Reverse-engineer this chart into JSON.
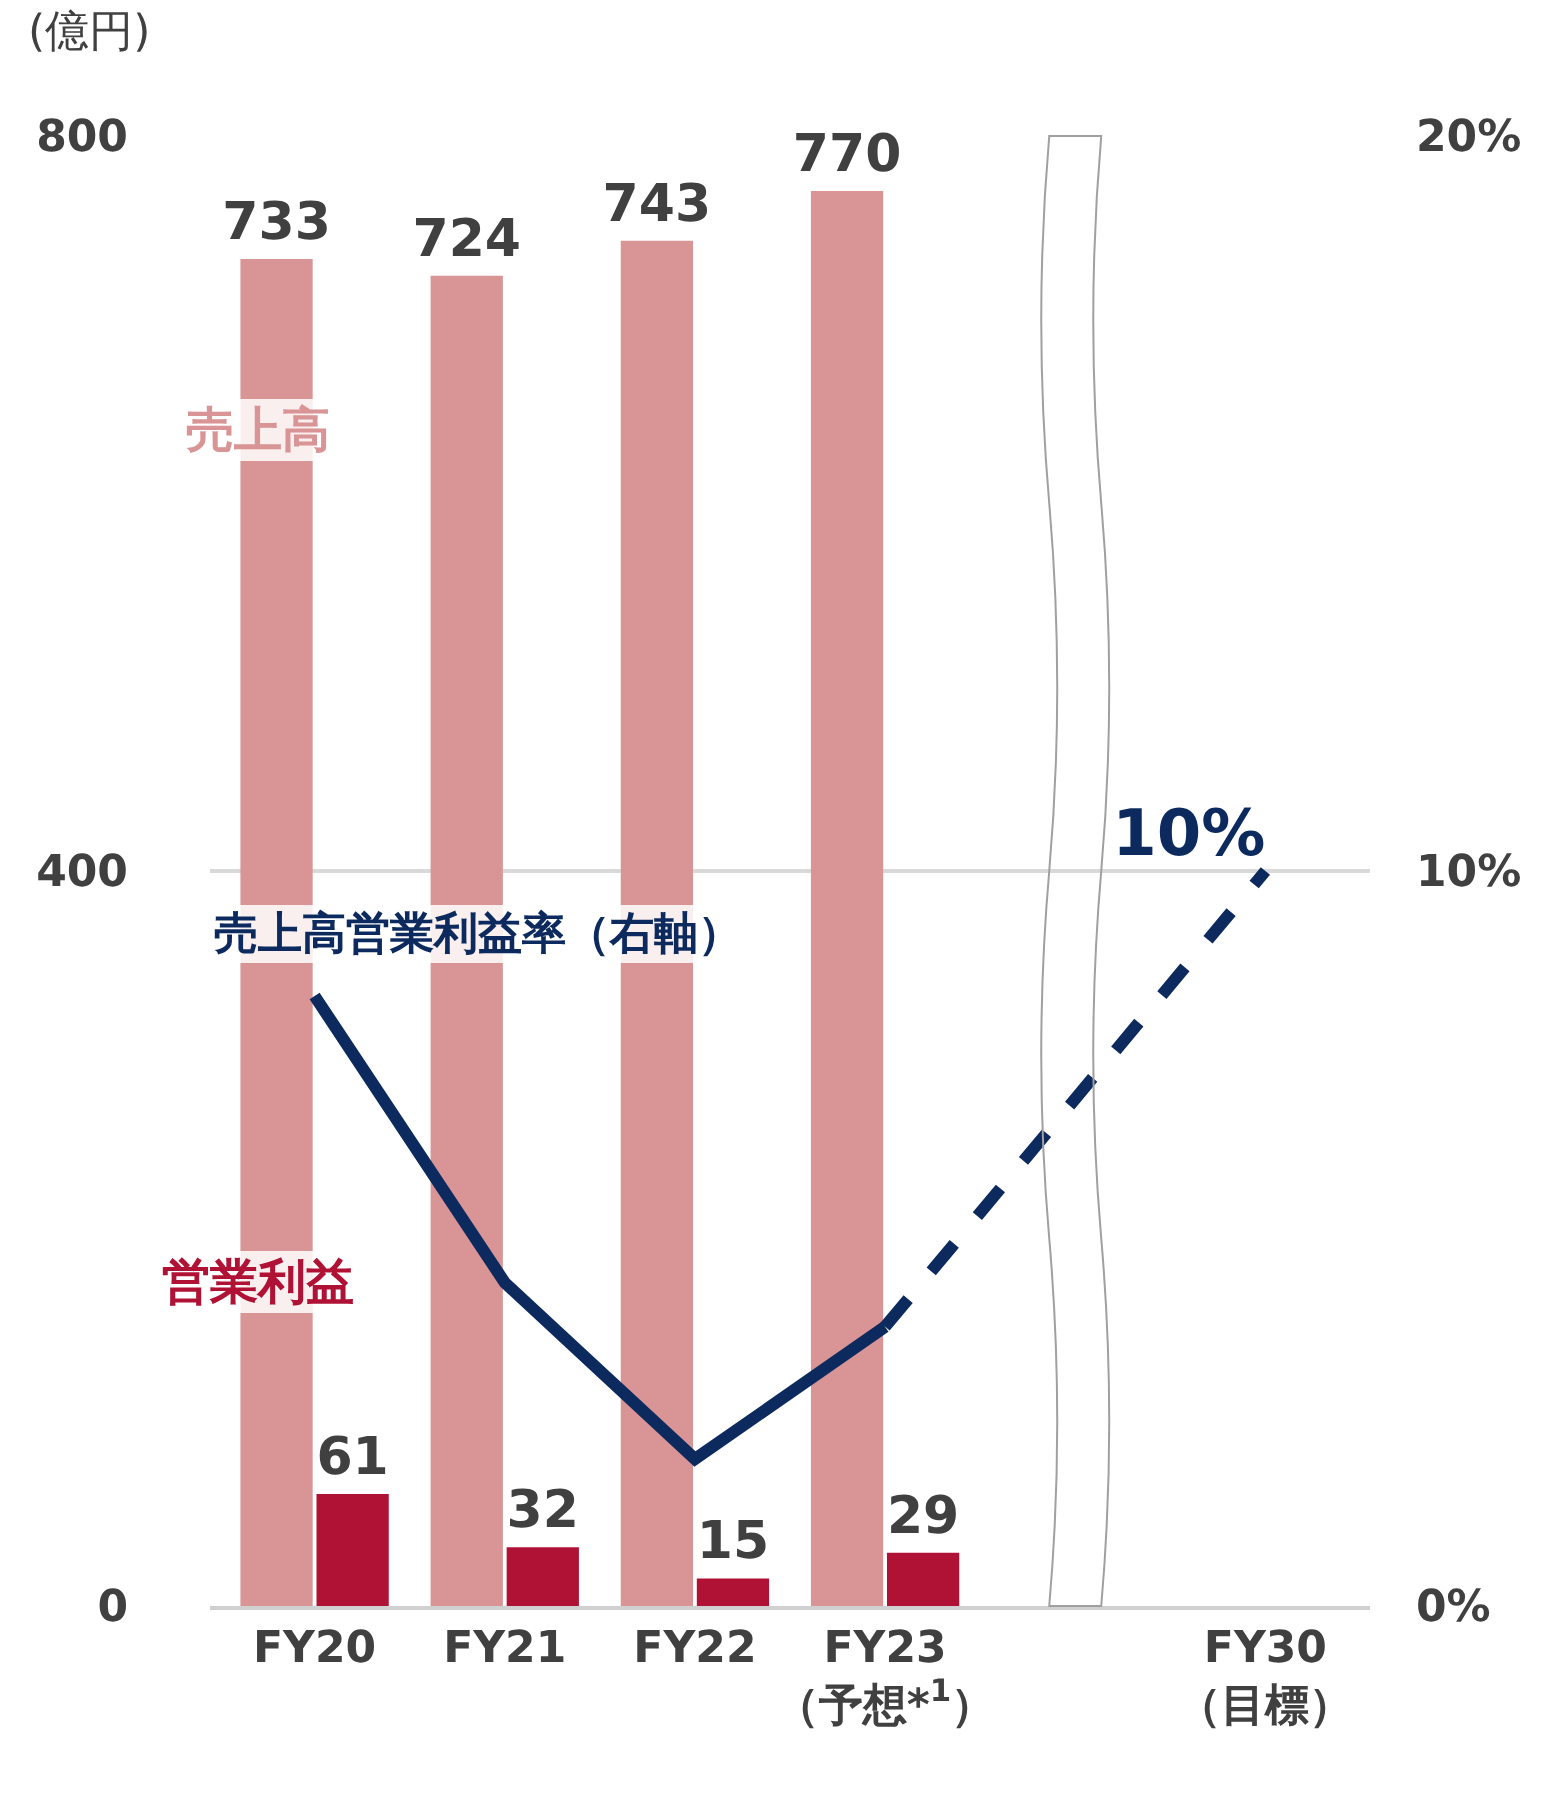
{
  "chart_data": {
    "type": "bar",
    "ylabel": "(億円)",
    "categories": [
      "FY20",
      "FY21",
      "FY22",
      "FY23\n（予想*$^{1}$）",
      null,
      "FY30\n（目標）"
    ],
    "series": [
      {
        "name": "売上高",
        "color": "#d99595",
        "values": [
          733,
          724,
          743,
          770,
          null,
          null
        ],
        "value_labels": [
          "733",
          "724",
          "743",
          "770",
          null,
          null
        ]
      },
      {
        "name": "営業利益",
        "color": "#b01235",
        "values": [
          61,
          32,
          15,
          29,
          null,
          null
        ],
        "value_labels": [
          "61",
          "32",
          "15",
          "29",
          null,
          null
        ]
      },
      {
        "type": "line",
        "axis": "y2",
        "name": "売上高営業利益率（右軸）",
        "color": "#0d2a5e",
        "line_style": "solid",
        "values": [
          8.3,
          4.4,
          2.0,
          3.8,
          null,
          null
        ]
      },
      {
        "type": "line",
        "axis": "y2",
        "color": "#0d2a5e",
        "line_style": "dashed",
        "values": [
          null,
          null,
          null,
          3.8,
          null,
          10
        ],
        "value_labels": [
          null,
          null,
          null,
          null,
          null,
          "10%"
        ]
      }
    ],
    "ylim": [
      0,
      800
    ],
    "yticks": [
      0,
      400,
      800
    ],
    "y2lim": [
      0,
      20
    ],
    "y2ticks": [
      {
        "value": 0,
        "label": "0%"
      },
      {
        "value": 10,
        "label": "10%"
      },
      {
        "value": 20,
        "label": "20%"
      }
    ],
    "grid": "y",
    "legend": false,
    "marker": "none"
  }
}
